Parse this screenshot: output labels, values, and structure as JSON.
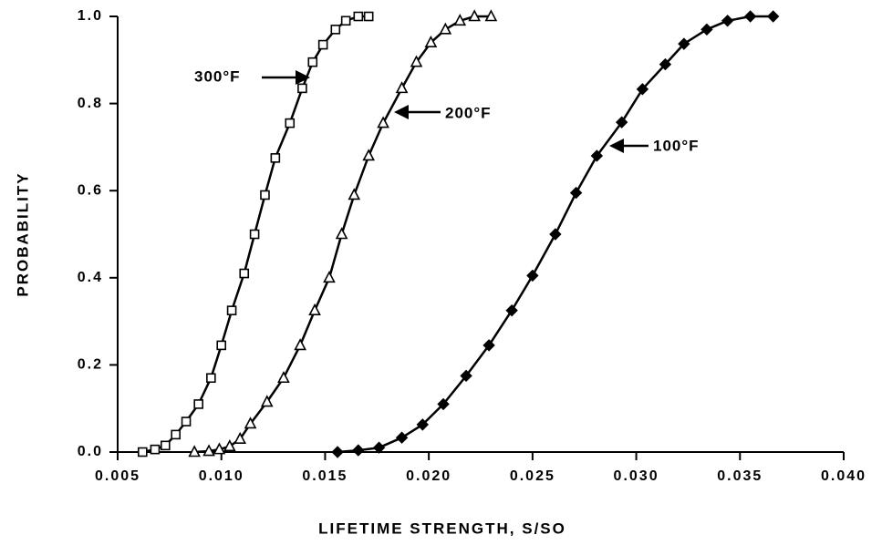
{
  "chart_data": {
    "type": "line",
    "xlabel": "LIFETIME STRENGTH, S/SO",
    "ylabel": "PROBABILITY",
    "xlim": [
      0.005,
      0.04
    ],
    "ylim": [
      0,
      1
    ],
    "xticks": [
      0.005,
      {
        "value": 0.01,
        "label": "0.010"
      },
      0.015,
      {
        "value": 0.02,
        "label": "0.020"
      },
      0.025,
      {
        "value": 0.03,
        "label": "0.030"
      },
      0.035,
      {
        "value": 0.04,
        "label": "0.040"
      }
    ],
    "yticks": [
      {
        "value": 0,
        "label": "0.0"
      },
      0.2,
      0.4,
      0.6,
      0.8,
      {
        "value": 1,
        "label": "1.0"
      }
    ],
    "grid": false,
    "series": [
      {
        "name": "300°F",
        "color": "#000000",
        "marker": "square",
        "x": [
          0.0062,
          0.0068,
          0.0073,
          0.0078,
          0.0083,
          0.0089,
          0.0095,
          0.01,
          0.0105,
          0.0111,
          0.0116,
          0.0121,
          0.0126,
          0.0133,
          0.0139,
          0.0144,
          0.0149,
          0.0155,
          0.016,
          0.0166,
          0.0171
        ],
        "values": [
          0,
          0.006,
          0.015,
          0.04,
          0.07,
          0.11,
          0.17,
          0.245,
          0.325,
          0.41,
          0.5,
          0.59,
          0.675,
          0.755,
          0.835,
          0.895,
          0.935,
          0.97,
          0.99,
          1.0,
          1.0
        ]
      },
      {
        "name": "200°F",
        "color": "#000000",
        "marker": "triangle",
        "x": [
          0.0087,
          0.0094,
          0.0099,
          0.0104,
          0.0109,
          0.0114,
          0.0122,
          0.013,
          0.0138,
          0.0145,
          0.0152,
          0.0158,
          0.0164,
          0.0171,
          0.0178,
          0.0187,
          0.0194,
          0.0201,
          0.0208,
          0.0215,
          0.0222,
          0.023
        ],
        "values": [
          0,
          0.002,
          0.006,
          0.013,
          0.03,
          0.065,
          0.115,
          0.17,
          0.245,
          0.325,
          0.4,
          0.5,
          0.59,
          0.68,
          0.755,
          0.835,
          0.895,
          0.94,
          0.97,
          0.99,
          1.0,
          1.0
        ]
      },
      {
        "name": "100°F",
        "color": "#000000",
        "marker": "diamond",
        "x": [
          0.0156,
          0.0166,
          0.0176,
          0.0187,
          0.0197,
          0.0207,
          0.0218,
          0.0229,
          0.024,
          0.025,
          0.0261,
          0.0271,
          0.0281,
          0.0293,
          0.0303,
          0.0314,
          0.0323,
          0.0334,
          0.0344,
          0.0355,
          0.0366
        ],
        "values": [
          0,
          0.004,
          0.01,
          0.033,
          0.063,
          0.11,
          0.175,
          0.245,
          0.325,
          0.405,
          0.5,
          0.595,
          0.68,
          0.757,
          0.833,
          0.89,
          0.937,
          0.97,
          0.99,
          1.0,
          1.0
        ]
      }
    ]
  }
}
